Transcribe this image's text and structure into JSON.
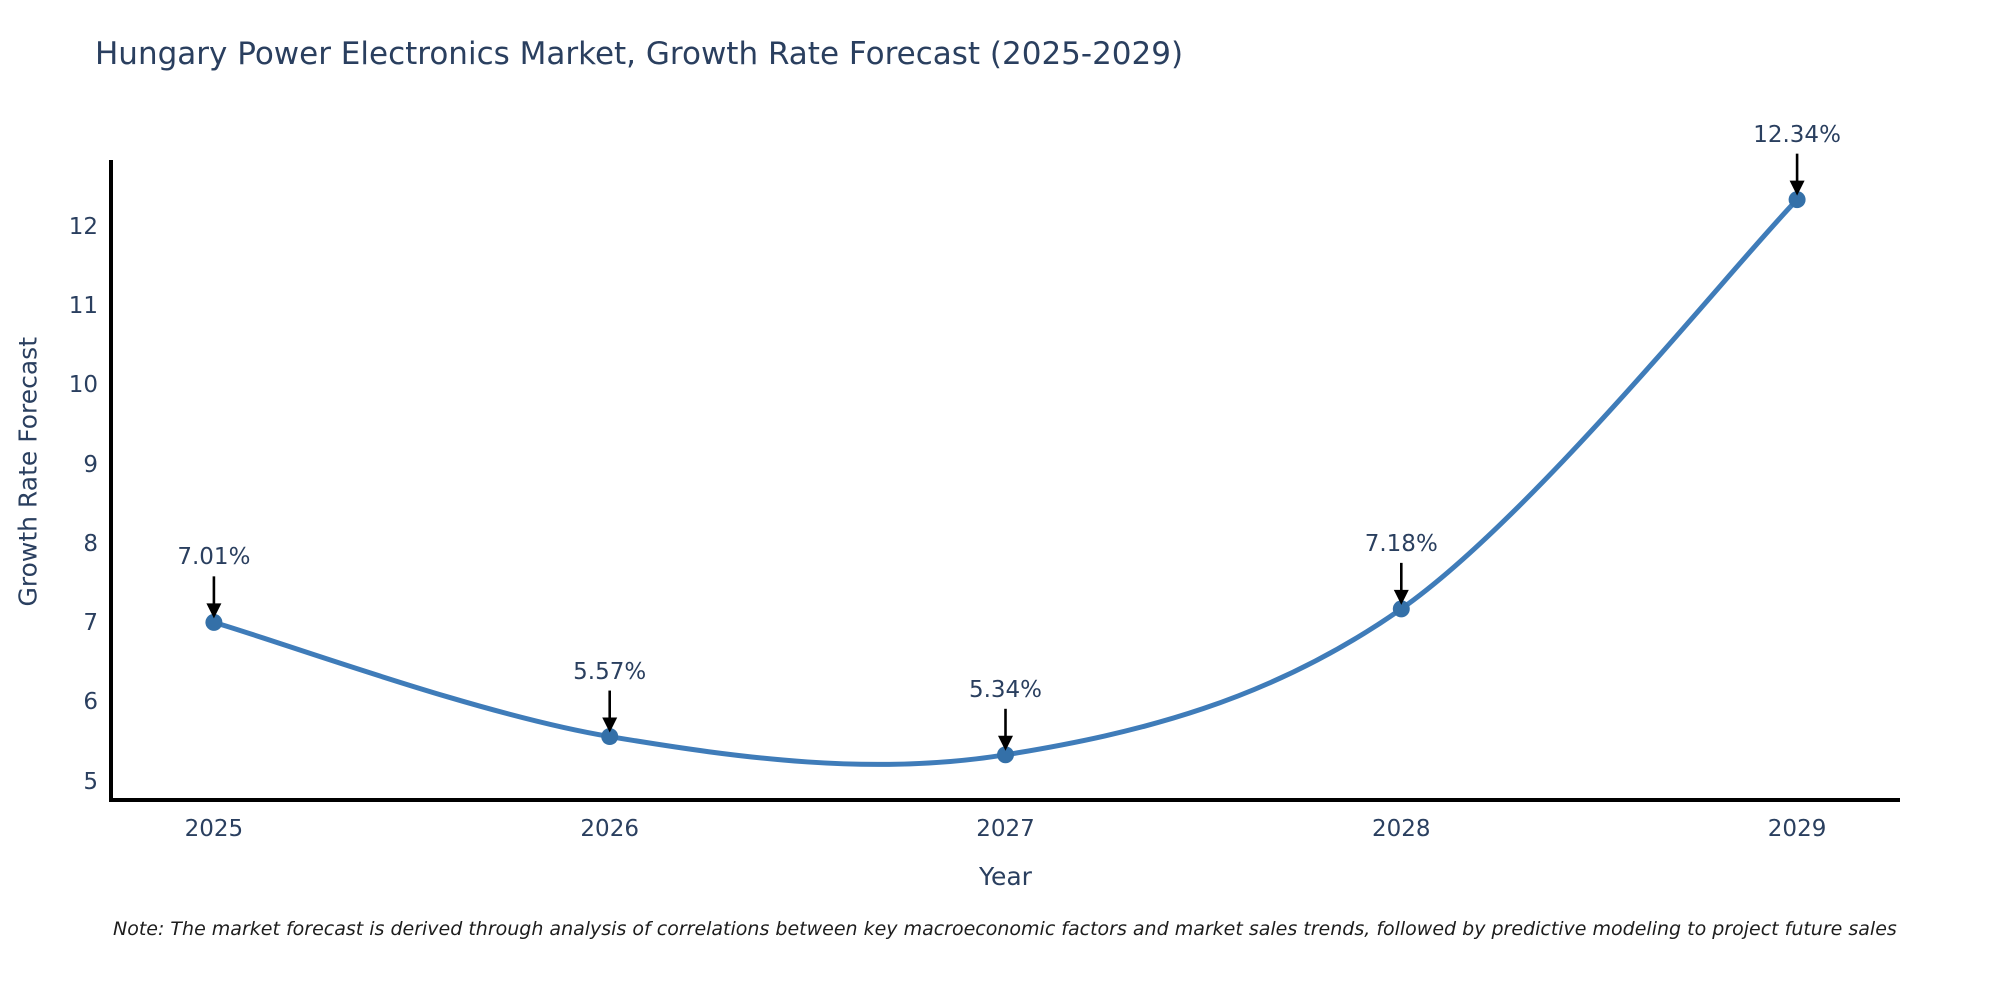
{
  "chart": {
    "note": "Note: The market forecast is derived through analysis of correlations between key macroeconomic factors and market sales trends, followed by predictive modeling to project future sales"
  },
  "chart_data": {
    "type": "line",
    "title": "Hungary Power Electronics Market, Growth Rate Forecast (2025-2029)",
    "xlabel": "Year",
    "ylabel": "Growth Rate Forecast",
    "x": [
      2025,
      2026,
      2027,
      2028,
      2029
    ],
    "values": [
      7.01,
      5.57,
      5.34,
      7.18,
      12.34
    ],
    "point_labels": [
      "7.01%",
      "5.57%",
      "5.34%",
      "7.18%",
      "12.34%"
    ],
    "xticks": [
      "2025",
      "2026",
      "2027",
      "2028",
      "2029"
    ],
    "xtick_values": [
      2025,
      2026,
      2027,
      2028,
      2029
    ],
    "yticks": [
      5,
      6,
      7,
      8,
      9,
      10,
      11,
      12
    ],
    "xlim": [
      2024.74,
      2029.26
    ],
    "ylim": [
      4.77,
      12.84
    ],
    "line_shape": "spline",
    "grid": false,
    "legend": "none",
    "annotation_style": "text-above-with-down-arrow",
    "colors": {
      "line": "#3f7cb9",
      "marker": "#3470a8",
      "axis": "#000000",
      "text": "#2a3f5f",
      "arrow": "#000000",
      "background": "#ffffff"
    }
  }
}
